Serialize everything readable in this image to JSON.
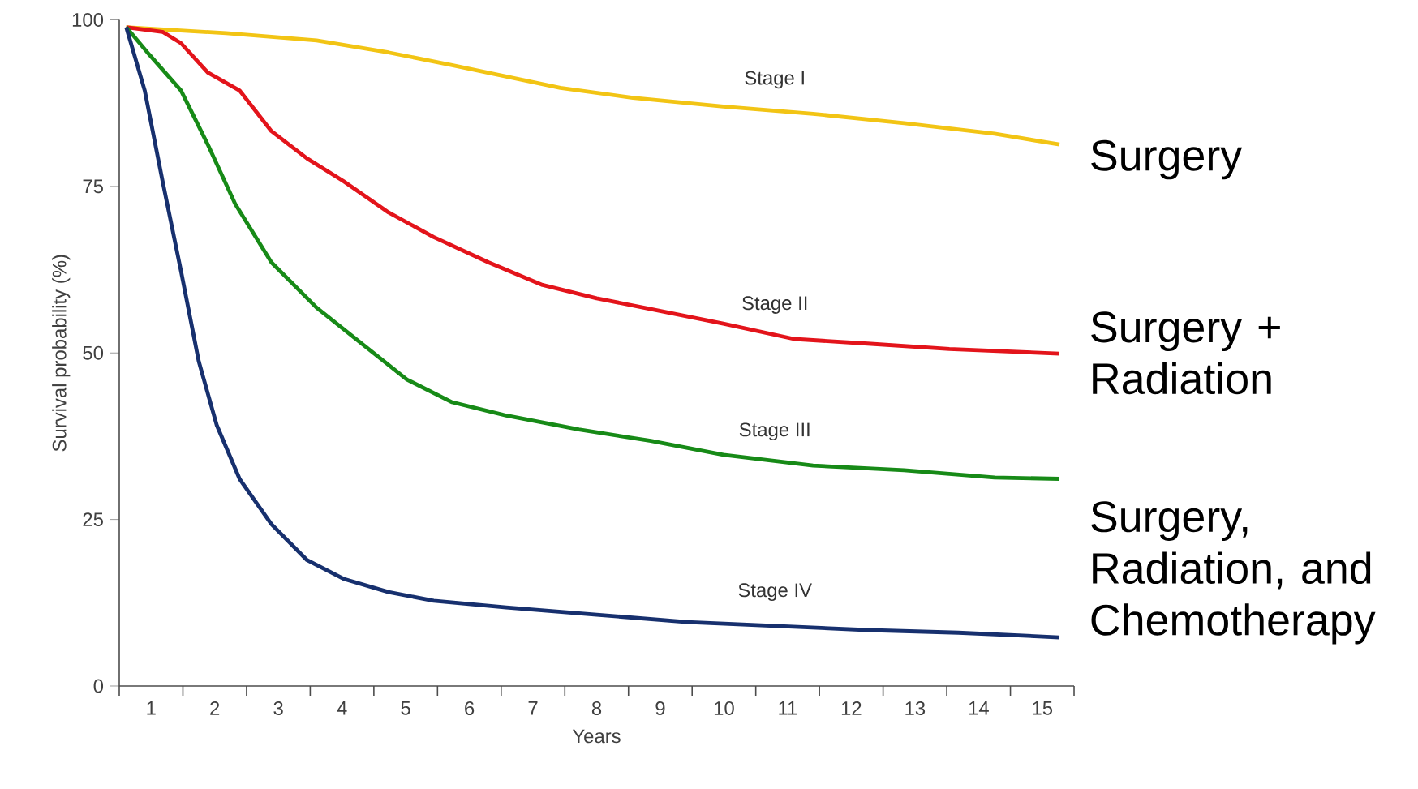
{
  "chart_data": {
    "type": "line",
    "xlabel": "Years",
    "ylabel": "Survival probability (%)",
    "xlim": [
      0,
      15
    ],
    "ylim": [
      0,
      100
    ],
    "yticks": [
      0,
      25,
      50,
      75,
      100
    ],
    "xticks": [
      {
        "value": 0.5,
        "label": "1"
      },
      {
        "value": 1.5,
        "label": "2"
      },
      {
        "value": 2.5,
        "label": "3"
      },
      {
        "value": 3.5,
        "label": "4"
      },
      {
        "value": 4.5,
        "label": "5"
      },
      {
        "value": 5.5,
        "label": "6"
      },
      {
        "value": 6.5,
        "label": "7"
      },
      {
        "value": 7.5,
        "label": "8"
      },
      {
        "value": 8.5,
        "label": "9"
      },
      {
        "value": 9.5,
        "label": "10"
      },
      {
        "value": 10.5,
        "label": "11"
      },
      {
        "value": 11.5,
        "label": "12"
      },
      {
        "value": 12.5,
        "label": "13"
      },
      {
        "value": 13.5,
        "label": "14"
      },
      {
        "value": 14.5,
        "label": "15"
      },
      {
        "value": 0,
        "label": null
      },
      {
        "value": 1,
        "label": null
      },
      {
        "value": 2,
        "label": null
      },
      {
        "value": 3,
        "label": null
      },
      {
        "value": 4,
        "label": null
      },
      {
        "value": 5,
        "label": null
      },
      {
        "value": 6,
        "label": null
      },
      {
        "value": 7,
        "label": null
      },
      {
        "value": 8,
        "label": null
      },
      {
        "value": 9,
        "label": null
      },
      {
        "value": 10,
        "label": null
      },
      {
        "value": 11,
        "label": null
      },
      {
        "value": 12,
        "label": null
      },
      {
        "value": 13,
        "label": null
      },
      {
        "value": 14,
        "label": null
      },
      {
        "value": 15,
        "label": null
      }
    ],
    "grid": false,
    "legend": false,
    "marker": "none",
    "line_style": "solid",
    "series": [
      {
        "name": "Stage I",
        "color": "#f2c414",
        "x": [
          0.11,
          1.68,
          3.1,
          4.23,
          5.23,
          6.08,
          6.93,
          8.07,
          9.49,
          10.9,
          12.33,
          13.75,
          14.77
        ],
        "values": [
          98.9,
          98.0,
          96.9,
          95.1,
          93.2,
          91.5,
          89.8,
          88.3,
          87.0,
          85.9,
          84.5,
          82.9,
          81.3
        ]
      },
      {
        "name": "Stage II",
        "color": "#e3141b",
        "x": [
          0.11,
          0.68,
          0.97,
          1.39,
          1.89,
          2.39,
          2.95,
          3.52,
          4.23,
          4.94,
          5.8,
          6.65,
          7.5,
          8.35,
          9.49,
          10.6,
          11.76,
          13.04,
          14.77
        ],
        "values": [
          98.9,
          98.2,
          96.5,
          92.1,
          89.4,
          83.3,
          79.2,
          75.8,
          71.1,
          67.4,
          63.6,
          60.2,
          58.2,
          56.6,
          54.4,
          52.1,
          51.4,
          50.6,
          49.9
        ]
      },
      {
        "name": "Stage III",
        "color": "#178a17",
        "x": [
          0.11,
          0.47,
          0.97,
          1.39,
          1.82,
          2.39,
          3.1,
          3.81,
          4.52,
          5.23,
          6.08,
          7.22,
          8.35,
          9.49,
          10.9,
          12.33,
          13.75,
          14.77
        ],
        "values": [
          98.9,
          94.8,
          89.4,
          81.3,
          72.4,
          63.6,
          56.8,
          51.4,
          46.0,
          42.6,
          40.6,
          38.5,
          36.8,
          34.7,
          33.1,
          32.4,
          31.3,
          31.1
        ]
      },
      {
        "name": "Stage IV",
        "color": "#17306e",
        "x": [
          0.11,
          0.4,
          0.68,
          0.97,
          1.25,
          1.53,
          1.89,
          2.39,
          2.95,
          3.52,
          4.23,
          4.94,
          6.08,
          7.5,
          8.92,
          10.34,
          11.76,
          13.18,
          14.77
        ],
        "values": [
          98.9,
          89.4,
          75.8,
          62.3,
          48.7,
          39.2,
          31.1,
          24.3,
          18.9,
          16.1,
          14.1,
          12.8,
          11.8,
          10.7,
          9.6,
          9.0,
          8.4,
          8.0,
          7.3
        ]
      }
    ],
    "annotations": [
      "Surgery",
      "Surgery + Radiation",
      "Surgery, Radiation, and Chemotherapy"
    ]
  }
}
